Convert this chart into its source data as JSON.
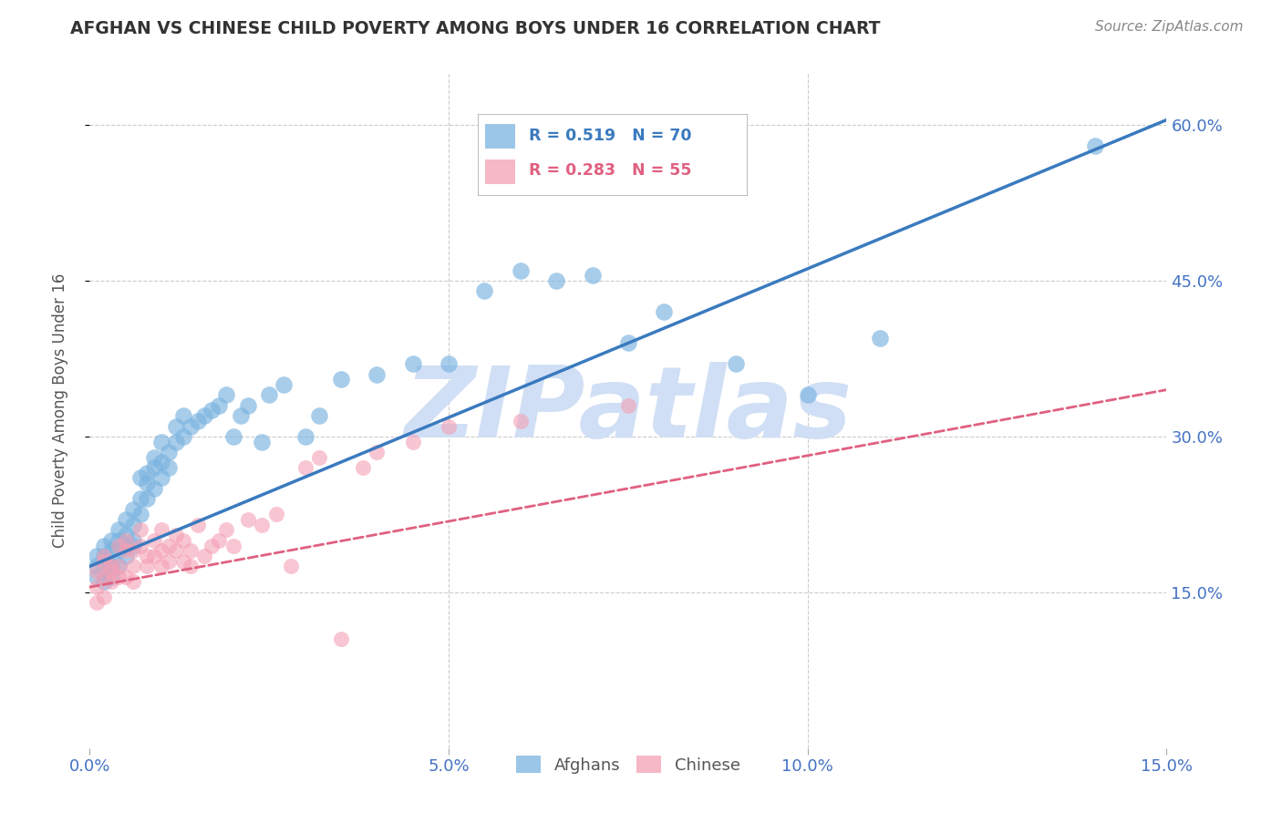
{
  "title": "AFGHAN VS CHINESE CHILD POVERTY AMONG BOYS UNDER 16 CORRELATION CHART",
  "source": "Source: ZipAtlas.com",
  "ylabel": "Child Poverty Among Boys Under 16",
  "xlim": [
    0.0,
    0.15
  ],
  "ylim": [
    0.0,
    0.65
  ],
  "yticks": [
    0.15,
    0.3,
    0.45,
    0.6
  ],
  "ytick_labels": [
    "15.0%",
    "30.0%",
    "45.0%",
    "60.0%"
  ],
  "xticks": [
    0.0,
    0.05,
    0.1,
    0.15
  ],
  "xtick_labels": [
    "0.0%",
    "5.0%",
    "10.0%",
    "15.0%"
  ],
  "watermark": "ZIPatlas",
  "afghan_color": "#7ab3e0",
  "chinese_color": "#f4a0b5",
  "line_afghan_color": "#3a7abf",
  "line_chinese_color": "#e06080",
  "title_color": "#333333",
  "axis_label_color": "#555555",
  "tick_color": "#4472c4",
  "grid_color": "#cccccc",
  "watermark_color": "#d0dff5",
  "R_afghan": 0.519,
  "N_afghan": 70,
  "R_chinese": 0.283,
  "N_chinese": 55,
  "afghan_line_x0": 0.0,
  "afghan_line_y0": 0.175,
  "afghan_line_x1": 0.15,
  "afghan_line_y1": 0.605,
  "chinese_line_x0": 0.0,
  "chinese_line_y0": 0.155,
  "chinese_line_x1": 0.15,
  "chinese_line_y1": 0.345,
  "afghan_x": [
    0.001,
    0.001,
    0.001,
    0.002,
    0.002,
    0.002,
    0.002,
    0.003,
    0.003,
    0.003,
    0.003,
    0.003,
    0.004,
    0.004,
    0.004,
    0.004,
    0.005,
    0.005,
    0.005,
    0.005,
    0.006,
    0.006,
    0.006,
    0.006,
    0.007,
    0.007,
    0.007,
    0.008,
    0.008,
    0.008,
    0.009,
    0.009,
    0.009,
    0.01,
    0.01,
    0.01,
    0.011,
    0.011,
    0.012,
    0.012,
    0.013,
    0.013,
    0.014,
    0.015,
    0.016,
    0.017,
    0.018,
    0.019,
    0.02,
    0.021,
    0.022,
    0.024,
    0.025,
    0.027,
    0.03,
    0.032,
    0.035,
    0.04,
    0.045,
    0.05,
    0.055,
    0.06,
    0.065,
    0.07,
    0.075,
    0.08,
    0.09,
    0.1,
    0.11,
    0.14
  ],
  "afghan_y": [
    0.175,
    0.185,
    0.165,
    0.175,
    0.195,
    0.16,
    0.185,
    0.2,
    0.175,
    0.19,
    0.165,
    0.175,
    0.2,
    0.19,
    0.21,
    0.175,
    0.195,
    0.22,
    0.205,
    0.185,
    0.215,
    0.23,
    0.2,
    0.195,
    0.26,
    0.24,
    0.225,
    0.255,
    0.265,
    0.24,
    0.27,
    0.28,
    0.25,
    0.275,
    0.295,
    0.26,
    0.285,
    0.27,
    0.295,
    0.31,
    0.3,
    0.32,
    0.31,
    0.315,
    0.32,
    0.325,
    0.33,
    0.34,
    0.3,
    0.32,
    0.33,
    0.295,
    0.34,
    0.35,
    0.3,
    0.32,
    0.355,
    0.36,
    0.37,
    0.37,
    0.44,
    0.46,
    0.45,
    0.455,
    0.39,
    0.42,
    0.37,
    0.34,
    0.395,
    0.58
  ],
  "chinese_x": [
    0.001,
    0.001,
    0.001,
    0.002,
    0.002,
    0.002,
    0.002,
    0.003,
    0.003,
    0.003,
    0.004,
    0.004,
    0.004,
    0.005,
    0.005,
    0.005,
    0.006,
    0.006,
    0.006,
    0.007,
    0.007,
    0.008,
    0.008,
    0.009,
    0.009,
    0.01,
    0.01,
    0.01,
    0.011,
    0.011,
    0.012,
    0.012,
    0.013,
    0.013,
    0.014,
    0.014,
    0.015,
    0.016,
    0.017,
    0.018,
    0.019,
    0.02,
    0.022,
    0.024,
    0.026,
    0.028,
    0.03,
    0.032,
    0.035,
    0.038,
    0.04,
    0.045,
    0.05,
    0.06,
    0.075
  ],
  "chinese_y": [
    0.17,
    0.155,
    0.14,
    0.18,
    0.165,
    0.145,
    0.185,
    0.175,
    0.16,
    0.17,
    0.165,
    0.195,
    0.175,
    0.19,
    0.165,
    0.2,
    0.175,
    0.19,
    0.16,
    0.195,
    0.21,
    0.185,
    0.175,
    0.2,
    0.185,
    0.19,
    0.175,
    0.21,
    0.195,
    0.18,
    0.19,
    0.205,
    0.18,
    0.2,
    0.19,
    0.175,
    0.215,
    0.185,
    0.195,
    0.2,
    0.21,
    0.195,
    0.22,
    0.215,
    0.225,
    0.175,
    0.27,
    0.28,
    0.105,
    0.27,
    0.285,
    0.295,
    0.31,
    0.315,
    0.33
  ]
}
